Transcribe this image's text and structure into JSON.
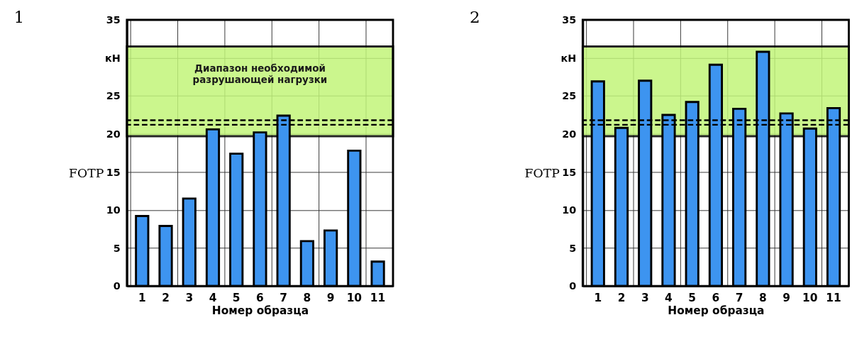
{
  "chart_data": [
    {
      "type": "bar",
      "title": "1",
      "xlabel": "Номер образца",
      "ylabel": "FОТР",
      "categories": [
        "1",
        "2",
        "3",
        "4",
        "5",
        "6",
        "7",
        "8",
        "9",
        "10",
        "11"
      ],
      "values": [
        9.2,
        7.9,
        11.5,
        20.6,
        17.4,
        20.2,
        22.4,
        5.9,
        7.3,
        17.8,
        3.2
      ],
      "color": "#3d94f0",
      "ylim": [
        0,
        35
      ],
      "yticks": [
        0,
        5,
        10,
        15,
        20,
        {
          "value": 30,
          "label": "кН"
        },
        25,
        35
      ],
      "grid": true,
      "bands": [
        {
          "axis": "y",
          "from": 19.7,
          "to": 31.5,
          "label": "Диапазон необходимой\nразрушающей нагрузки",
          "color": "#c2f57a"
        }
      ],
      "ref_lines": [
        {
          "axis": "y",
          "value": 21.2,
          "color": "#000000",
          "line_style": "dashed"
        },
        {
          "axis": "y",
          "value": 21.8,
          "color": "#000000",
          "line_style": "dashed"
        }
      ]
    },
    {
      "type": "bar",
      "title": "2",
      "xlabel": "Номер образца",
      "ylabel": "FОТР",
      "categories": [
        "1",
        "2",
        "3",
        "4",
        "5",
        "6",
        "7",
        "8",
        "9",
        "10",
        "11"
      ],
      "values": [
        26.9,
        20.8,
        27.0,
        22.5,
        24.2,
        29.1,
        23.3,
        30.8,
        22.7,
        20.7,
        23.4
      ],
      "color": "#3d94f0",
      "ylim": [
        0,
        35
      ],
      "yticks": [
        0,
        5,
        10,
        15,
        20,
        {
          "value": 30,
          "label": "кН"
        },
        25,
        35
      ],
      "grid": true,
      "bands": [
        {
          "axis": "y",
          "from": 19.7,
          "to": 31.5,
          "color": "#c2f57a"
        }
      ],
      "ref_lines": [
        {
          "axis": "y",
          "value": 21.2,
          "color": "#000000",
          "line_style": "dashed"
        },
        {
          "axis": "y",
          "value": 21.8,
          "color": "#000000",
          "line_style": "dashed"
        }
      ]
    }
  ]
}
